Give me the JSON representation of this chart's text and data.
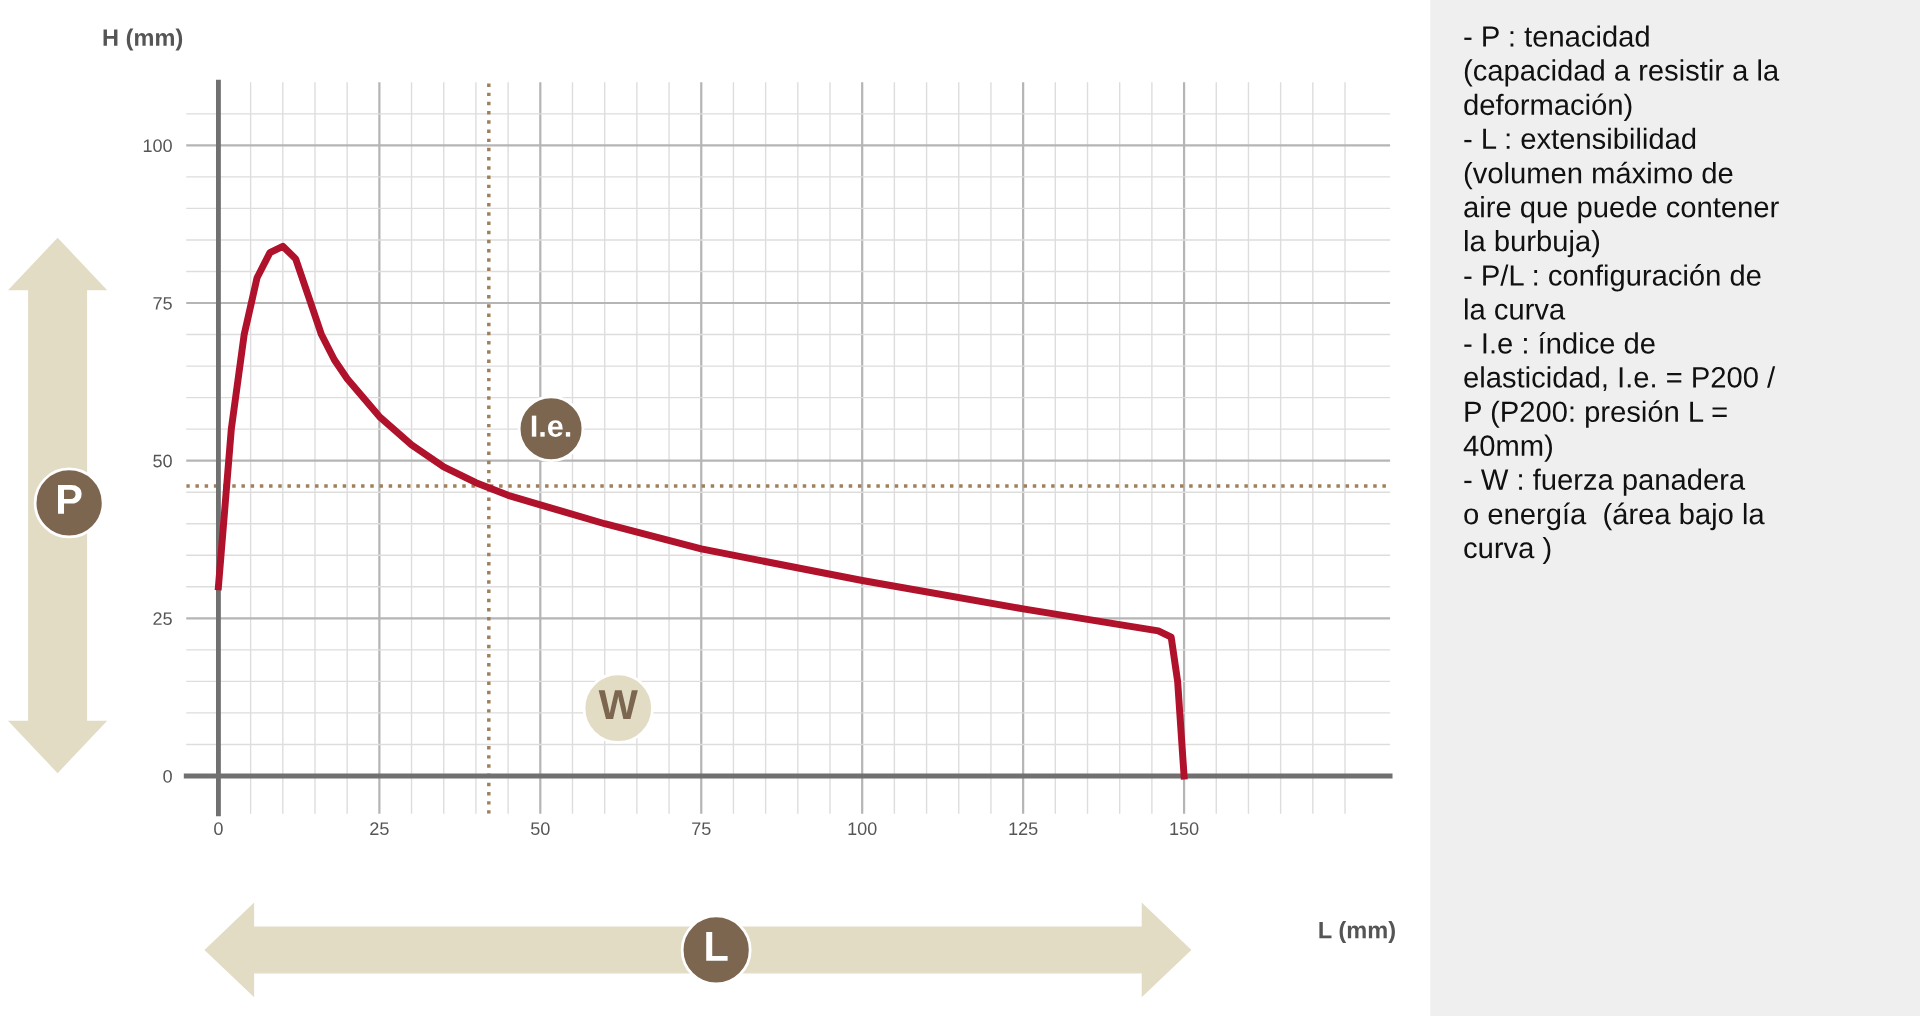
{
  "chart_data": {
    "type": "line",
    "xlabel": "L (mm)",
    "ylabel": "H (mm)",
    "series": [
      {
        "color": "#b0112b",
        "x": [
          0,
          2,
          4,
          6,
          8,
          10,
          12,
          14,
          16,
          18,
          20,
          25,
          30,
          35,
          40,
          45,
          50,
          60,
          75,
          100,
          125,
          140,
          146,
          148,
          149,
          150
        ],
        "values": [
          30,
          55,
          70,
          79,
          83,
          84,
          82,
          76,
          70,
          66,
          63,
          57,
          52.5,
          49,
          46.5,
          44.5,
          43,
          40,
          36,
          31,
          26.5,
          24,
          23,
          22,
          15,
          0
        ]
      }
    ],
    "xlim": [
      -5,
      182
    ],
    "ylim": [
      -6,
      110
    ],
    "xticks": [
      0,
      {
        "value": 5,
        "label": null
      },
      {
        "value": 10,
        "label": null
      },
      {
        "value": 15,
        "label": null
      },
      {
        "value": 20,
        "label": null
      },
      25,
      {
        "value": 30,
        "label": null
      },
      {
        "value": 35,
        "label": null
      },
      {
        "value": 40,
        "label": null
      },
      {
        "value": 45,
        "label": null
      },
      50,
      {
        "value": 55,
        "label": null
      },
      {
        "value": 60,
        "label": null
      },
      {
        "value": 65,
        "label": null
      },
      {
        "value": 70,
        "label": null
      },
      75,
      {
        "value": 80,
        "label": null
      },
      {
        "value": 85,
        "label": null
      },
      {
        "value": 90,
        "label": null
      },
      {
        "value": 95,
        "label": null
      },
      100,
      {
        "value": 105,
        "label": null
      },
      {
        "value": 110,
        "label": null
      },
      {
        "value": 115,
        "label": null
      },
      {
        "value": 120,
        "label": null
      },
      125,
      {
        "value": 130,
        "label": null
      },
      {
        "value": 135,
        "label": null
      },
      {
        "value": 140,
        "label": null
      },
      {
        "value": 145,
        "label": null
      },
      150,
      {
        "value": 155,
        "label": null
      },
      {
        "value": 160,
        "label": null
      },
      {
        "value": 165,
        "label": null
      },
      {
        "value": 170,
        "label": null
      },
      {
        "value": 175,
        "label": null
      }
    ],
    "yticks": [
      0,
      {
        "value": 5,
        "label": null
      },
      {
        "value": 10,
        "label": null
      },
      {
        "value": 15,
        "label": null
      },
      {
        "value": 20,
        "label": null
      },
      25,
      {
        "value": 30,
        "label": null
      },
      {
        "value": 35,
        "label": null
      },
      {
        "value": 40,
        "label": null
      },
      {
        "value": 45,
        "label": null
      },
      50,
      {
        "value": 55,
        "label": null
      },
      {
        "value": 60,
        "label": null
      },
      {
        "value": 65,
        "label": null
      },
      {
        "value": 70,
        "label": null
      },
      75,
      {
        "value": 80,
        "label": null
      },
      {
        "value": 85,
        "label": null
      },
      {
        "value": 90,
        "label": null
      },
      {
        "value": 95,
        "label": null
      },
      100,
      {
        "value": 105,
        "label": null
      }
    ],
    "grid": true,
    "line_style": "solid",
    "marker": "none",
    "ref_lines": [
      {
        "axis": "y",
        "value": 46,
        "color": "#a0805c",
        "line_style": "dotted"
      },
      {
        "axis": "x",
        "value": 42,
        "color": "#a0805c",
        "line_style": "dotted"
      }
    ],
    "annotations": [
      "P",
      "I.e.",
      "W",
      "L",
      "- P : tenacidad\n(capacidad a resistir a la\ndeformación)\n- L : extensibilidad\n(volumen máximo de\naire que puede contener\nla burbuja)\n- P/L : configuración de\nla curva\n- I.e : índice de\nelasticidad, I.e. = P200 /\nP (P200: presión L =\n40mm)\n- W : fuerza panadera\no energía  (área bajo la\ncurva )"
    ]
  }
}
